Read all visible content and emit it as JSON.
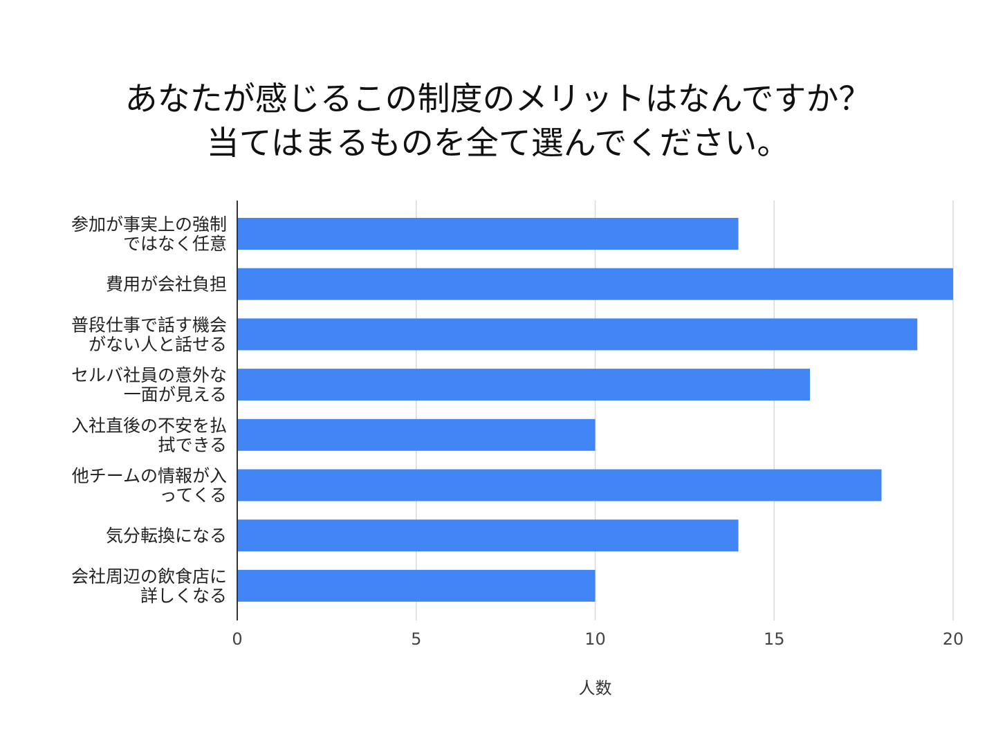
{
  "chart_data": {
    "type": "bar",
    "orientation": "horizontal",
    "title_lines": [
      "あなたが感じるこの制度のメリットはなんですか？",
      "当てはまるものを全て選んでください。"
    ],
    "xlabel": "人数",
    "ylabel": "",
    "categories": [
      [
        "参加が事実上の強制",
        "ではなく任意"
      ],
      [
        "費用が会社負担"
      ],
      [
        "普段仕事で話す機会",
        "がない人と話せる"
      ],
      [
        "セルバ社員の意外な",
        "一面が見える"
      ],
      [
        "入社直後の不安を払",
        "拭できる"
      ],
      [
        "他チームの情報が入",
        "ってくる"
      ],
      [
        "気分転換になる"
      ],
      [
        "会社周辺の飲食店に",
        "詳しくなる"
      ]
    ],
    "values": [
      14,
      20,
      19,
      16,
      10,
      18,
      14,
      10
    ],
    "xlim": [
      0,
      20
    ],
    "xticks": [
      0,
      5,
      10,
      15,
      20
    ],
    "grid": true,
    "legend": "none",
    "colors": {
      "bar": "#4285f4",
      "grid": "#d9d9d9",
      "axis": "#333333"
    }
  }
}
